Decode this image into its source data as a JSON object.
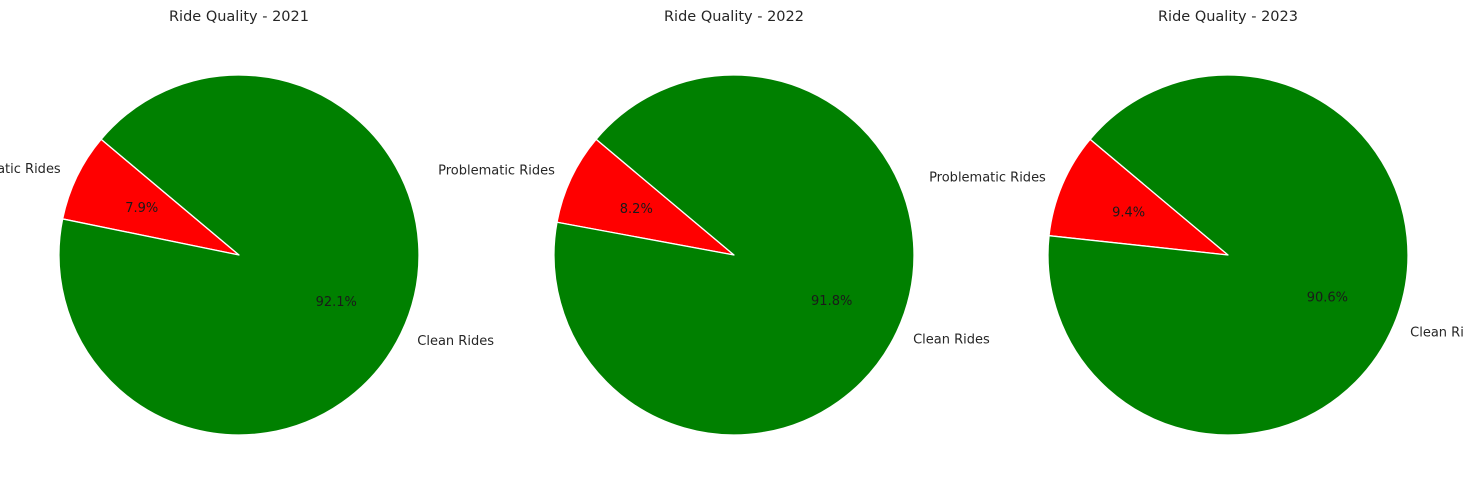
{
  "chart_data": [
    {
      "type": "pie",
      "title": "Ride Quality - 2021",
      "labels": [
        "Problematic Rides",
        "Clean Rides"
      ],
      "values": [
        7.9,
        92.1
      ],
      "value_labels": [
        "7.9%",
        "92.1%"
      ],
      "colors": [
        "#ff0000",
        "#008000"
      ],
      "start_angle_deg": 140,
      "direction": "counterclockwise"
    },
    {
      "type": "pie",
      "title": "Ride Quality - 2022",
      "labels": [
        "Problematic Rides",
        "Clean Rides"
      ],
      "values": [
        8.2,
        91.8
      ],
      "value_labels": [
        "8.2%",
        "91.8%"
      ],
      "colors": [
        "#ff0000",
        "#008000"
      ],
      "start_angle_deg": 140,
      "direction": "counterclockwise"
    },
    {
      "type": "pie",
      "title": "Ride Quality - 2023",
      "labels": [
        "Problematic Rides",
        "Clean Rides"
      ],
      "values": [
        9.4,
        90.6
      ],
      "value_labels": [
        "9.4%",
        "90.6%"
      ],
      "colors": [
        "#ff0000",
        "#008000"
      ],
      "start_angle_deg": 140,
      "direction": "counterclockwise"
    }
  ]
}
